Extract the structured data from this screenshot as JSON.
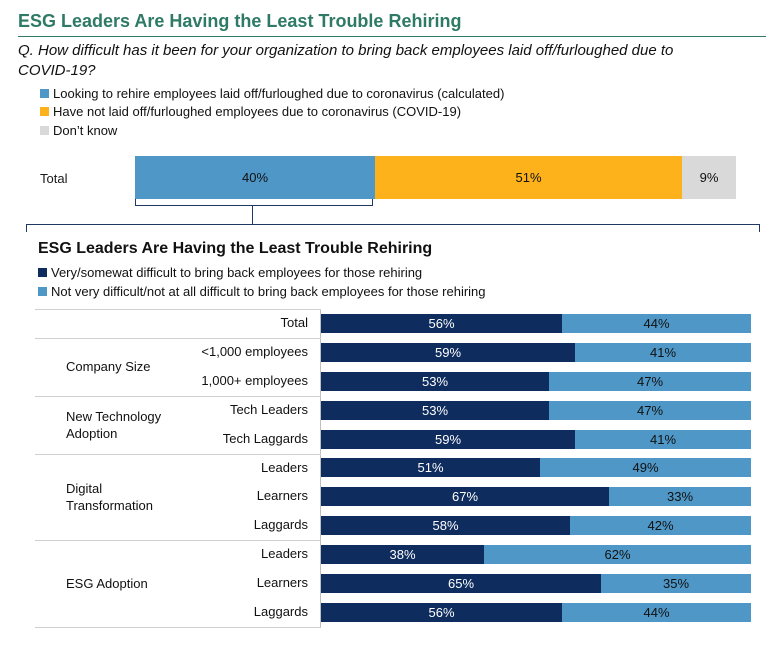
{
  "title": "ESG Leaders Are Having the Least Trouble Rehiring",
  "question": "Q. How difficult has it been for your organization to bring back employees laid off/furloughed due to COVID-19?",
  "top_legend": [
    {
      "label": "Looking to rehire employees laid off/furloughed due to coronavirus (calculated)",
      "color": "#4f97c7"
    },
    {
      "label": "Have not laid off/furloughed employees due to coronavirus (COVID-19)",
      "color": "#fdb11a"
    },
    {
      "label": "Don’t know",
      "color": "#d9d9d9"
    }
  ],
  "bottom_legend": [
    {
      "label": "Very/somewat difficult to bring back employees for those rehiring",
      "color": "#0f2c5e"
    },
    {
      "label": "Not very difficult/not at all difficult to bring back employees for those rehiring",
      "color": "#4f97c7"
    }
  ],
  "subtitle": "ESG Leaders Are Having the Least Trouble Rehiring",
  "chart_data": [
    {
      "type": "bar",
      "stacked": true,
      "orientation": "horizontal",
      "categories": [
        "Total"
      ],
      "series": [
        {
          "name": "Looking to rehire employees laid off/furloughed due to coronavirus (calculated)",
          "values": [
            40
          ],
          "labels": [
            "40%"
          ],
          "color": "#4f97c7"
        },
        {
          "name": "Have not laid off/furloughed employees due to coronavirus (COVID-19)",
          "values": [
            51
          ],
          "labels": [
            "51%"
          ],
          "color": "#fdb11a"
        },
        {
          "name": "Don’t know",
          "values": [
            9
          ],
          "labels": [
            "9%"
          ],
          "color": "#d9d9d9"
        }
      ]
    },
    {
      "type": "bar",
      "stacked": true,
      "orientation": "horizontal",
      "title": "ESG Leaders Are Having the Least Trouble Rehiring",
      "groups": [
        {
          "label": "",
          "rows": [
            0
          ]
        },
        {
          "label": "Company Size",
          "rows": [
            1,
            2
          ]
        },
        {
          "label": "New Technology Adoption",
          "rows": [
            3,
            4
          ]
        },
        {
          "label": "Digital Transformation",
          "rows": [
            5,
            6,
            7
          ]
        },
        {
          "label": "ESG Adoption",
          "rows": [
            8,
            9,
            10
          ]
        }
      ],
      "categories": [
        "Total",
        "<1,000 employees",
        "1,000+ employees",
        "Tech Leaders",
        "Tech Laggards",
        "Leaders",
        "Learners",
        "Laggards",
        "Leaders",
        "Learners",
        "Laggards"
      ],
      "series": [
        {
          "name": "Very/somewat difficult to bring back employees for those rehiring",
          "color": "#0f2c5e",
          "values": [
            56,
            59,
            53,
            53,
            59,
            51,
            67,
            58,
            38,
            65,
            56
          ],
          "labels": [
            "56%",
            "59%",
            "53%",
            "53%",
            "59%",
            "51%",
            "67%",
            "58%",
            "38%",
            "65%",
            "56%"
          ]
        },
        {
          "name": "Not very difficult/not at all difficult to bring back employees for those rehiring",
          "color": "#4f97c7",
          "values": [
            44,
            41,
            47,
            47,
            41,
            49,
            33,
            42,
            62,
            35,
            44
          ],
          "labels": [
            "44%",
            "41%",
            "47%",
            "47%",
            "41%",
            "49%",
            "33%",
            "42%",
            "62%",
            "35%",
            "44%"
          ]
        }
      ]
    }
  ]
}
